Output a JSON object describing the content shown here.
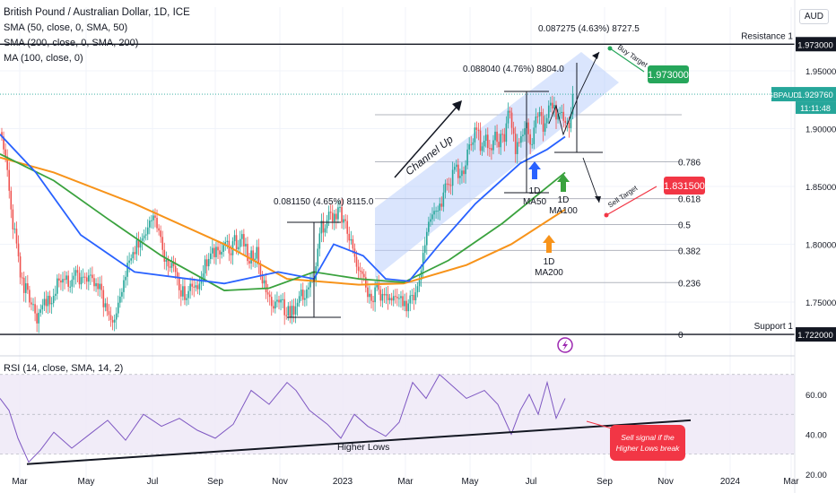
{
  "header": {
    "title": "British Pound / Australian Dollar, 1D, ICE",
    "indicators": [
      "SMA (50, close, 0, SMA, 50)",
      "SMA (200, close, 0, SMA, 200)",
      "MA (100, close, 0)"
    ],
    "currency": "AUD"
  },
  "colors": {
    "up": "#26a69a",
    "down": "#ef5350",
    "sma50": "#2962ff",
    "sma200": "#f7931a",
    "ma100": "#3aa23e",
    "channel": "#bbd0fb",
    "rsi": "#7e57c2",
    "rsiBand": "#ede7f6",
    "buy": "#26a65b",
    "sell": "#f23645",
    "price": "#26a69a"
  },
  "chart_data": {
    "type": "candlestick",
    "x_ticks": [
      "Mar",
      "May",
      "Jul",
      "Sep",
      "Nov",
      "2023",
      "Mar",
      "May",
      "Jul",
      "Sep",
      "Nov",
      "2024",
      "Mar"
    ],
    "y_ticks": [
      1.75,
      1.8,
      1.85,
      1.9,
      1.95
    ],
    "y_tick_labels": [
      "1.750000",
      "1.800000",
      "1.850000",
      "1.900000",
      "1.950000"
    ],
    "ylim": [
      1.705,
      2.005
    ],
    "price": {
      "symbol": "GBPAUD",
      "value": "1.929760",
      "countdown": "11:11:48",
      "level": 1.92976
    },
    "resistance": {
      "label": "Resistance 1",
      "value": "1.973000",
      "level": 1.973
    },
    "support": {
      "label": "Support 1",
      "value": "1.722000",
      "level": 1.722
    },
    "buy_target": {
      "label": "Buy Target",
      "value": "1.973000"
    },
    "sell_target": {
      "label": "Sell Target",
      "value": "1.831500"
    },
    "fib_levels": [
      {
        "label": "0",
        "level": 1.722
      },
      {
        "label": "0.236",
        "level": 1.7668
      },
      {
        "label": "0.382",
        "level": 1.7946
      },
      {
        "label": "0.5",
        "level": 1.817
      },
      {
        "label": "0.618",
        "level": 1.8394
      },
      {
        "label": "0.786",
        "level": 1.8713
      },
      {
        "label": "",
        "level": 1.912
      }
    ],
    "measurements": [
      {
        "label": "0.081150 (4.65%) 8115.0"
      },
      {
        "label": "0.088040 (4.76%) 8804.0"
      },
      {
        "label": "0.087275 (4.63%) 8727.5"
      }
    ],
    "annotations": {
      "channel": "Channel Up",
      "ma50": [
        "1D",
        "MA50"
      ],
      "ma100": [
        "1D",
        "MA100"
      ],
      "ma200": [
        "1D",
        "MA200"
      ],
      "higher_lows": "Higher Lows",
      "sell_signal": [
        "Sell signal if the",
        "Higher Lows break"
      ]
    },
    "rsi": {
      "label": "RSI (14, close, SMA, 14, 2)",
      "y_ticks": [
        20,
        40,
        60
      ],
      "y_tick_labels": [
        "20.00",
        "40.00",
        "60.00"
      ],
      "band": [
        30,
        70
      ],
      "ylim": [
        15,
        78
      ]
    },
    "candles_close": [
      1.893,
      1.882,
      1.8759,
      1.8642,
      1.8462,
      1.8301,
      1.8128,
      1.8134,
      1.8006,
      1.7895,
      1.7713,
      1.771,
      1.7578,
      1.7662,
      1.7605,
      1.7496,
      1.7479,
      1.7482,
      1.7402,
      1.7315,
      1.7407,
      1.7436,
      1.7473,
      1.7527,
      1.7465,
      1.7554,
      1.7481,
      1.7491,
      1.7554,
      1.7571,
      1.7704,
      1.7686,
      1.7669,
      1.7699,
      1.7692,
      1.7729,
      1.7632,
      1.7633,
      1.7693,
      1.7727,
      1.7777,
      1.7753,
      1.7653,
      1.7715,
      1.7719,
      1.7713,
      1.7676,
      1.773,
      1.7736,
      1.7707,
      1.7637,
      1.7662,
      1.7612,
      1.7658,
      1.7604,
      1.7455,
      1.7489,
      1.7421,
      1.7388,
      1.7344,
      1.7323,
      1.7348,
      1.7402,
      1.7494,
      1.7547,
      1.7586,
      1.7689,
      1.7718,
      1.7839,
      1.7859,
      1.7878,
      1.7932,
      1.7914,
      1.8037,
      1.7971,
      1.8029,
      1.8051,
      1.8075,
      1.8086,
      1.8145,
      1.8204,
      1.8207,
      1.8248,
      1.8229,
      1.8138,
      1.8118,
      1.8063,
      1.7951,
      1.7849,
      1.7866,
      1.7808,
      1.7796,
      1.7839,
      1.781,
      1.7759,
      1.771,
      1.7602,
      1.7548,
      1.7637,
      1.7517,
      1.7534,
      1.7595,
      1.7658,
      1.7633,
      1.7626,
      1.7645,
      1.7611,
      1.7659,
      1.7706,
      1.7747,
      1.7869,
      1.7809,
      1.7872,
      1.792,
      1.7968,
      1.7888,
      1.7977,
      1.7947,
      1.7911,
      1.7934,
      1.7994,
      1.8019,
      1.8029,
      1.7921,
      1.7905,
      1.8026,
      1.8079,
      1.7956,
      1.7975,
      1.8045,
      1.8088,
      1.7981,
      1.8003,
      1.7855,
      1.7833,
      1.7946,
      1.7862,
      1.7875,
      1.7976,
      1.7825,
      1.7726,
      1.7661,
      1.7688,
      1.7584,
      1.7565,
      1.7545,
      1.7465,
      1.7444,
      1.7504,
      1.7519,
      1.7496,
      1.7521,
      1.7524,
      1.7386,
      1.7382,
      1.7465,
      1.7368,
      1.7467,
      1.7392,
      1.7462,
      1.7493,
      1.7551,
      1.7607,
      1.7519,
      1.7533,
      1.7609,
      1.7627,
      1.7697,
      1.7704,
      1.7686,
      1.7809,
      1.7961,
      1.8093,
      1.8203,
      1.8101,
      1.8138,
      1.8209,
      1.8281,
      1.8271,
      1.8196,
      1.8263,
      1.8216,
      1.8319,
      1.8322,
      1.8186,
      1.8216,
      1.8201,
      1.809,
      1.8032,
      1.8043,
      1.7962,
      1.7891,
      1.7805,
      1.7771,
      1.7766,
      1.7743,
      1.7714,
      1.7626,
      1.7544,
      1.7571,
      1.751,
      1.7499,
      1.7627,
      1.7662,
      1.7606,
      1.7512,
      1.757,
      1.7558,
      1.7568,
      1.7516,
      1.7535,
      1.7513,
      1.7552,
      1.7545,
      1.7532,
      1.7534,
      1.7551,
      1.7464,
      1.751,
      1.7421,
      1.7488,
      1.7557,
      1.7561,
      1.7515,
      1.7584,
      1.7637,
      1.7691,
      1.7773,
      1.7925,
      1.7992,
      1.8106,
      1.8194,
      1.8216,
      1.8257,
      1.8288,
      1.8289,
      1.829,
      1.8351,
      1.8324,
      1.8447,
      1.8525,
      1.8523,
      1.8511,
      1.8506,
      1.8643,
      1.8669,
      1.8688,
      1.8572,
      1.8591,
      1.8637,
      1.8607,
      1.8682,
      1.8819,
      1.8863,
      1.8859,
      1.8881,
      1.9009,
      1.8989,
      1.8983,
      1.8807,
      1.8846,
      1.8895,
      1.8947,
      1.8832,
      1.8831,
      1.8813,
      1.8899,
      1.8973,
      1.8886,
      1.8839,
      1.8954,
      1.8952,
      1.8886,
      1.9045,
      1.9154,
      1.9138,
      1.9006,
      1.8955,
      1.8779,
      1.8883,
      1.8878,
      1.8934,
      1.8946,
      1.9003,
      1.9053,
      1.8951,
      1.8862,
      1.8865,
      1.9008,
      1.9105,
      1.9104,
      1.9143,
      1.911,
      1.8973,
      1.9046,
      1.9091,
      1.92,
      1.9223,
      1.9174,
      1.9205,
      1.9079,
      1.9126,
      1.9135,
      1.9144,
      1.9067,
      1.905,
      1.905,
      1.9004,
      1.9124,
      1.9298
    ],
    "sma50_series": [
      [
        0,
        1.895
      ],
      [
        40,
        1.862
      ],
      [
        90,
        1.808
      ],
      [
        150,
        1.776
      ],
      [
        250,
        1.766
      ],
      [
        310,
        1.776
      ],
      [
        350,
        1.77
      ],
      [
        372,
        1.8
      ],
      [
        405,
        1.79
      ],
      [
        430,
        1.77
      ],
      [
        456,
        1.768
      ],
      [
        490,
        1.8
      ],
      [
        530,
        1.835
      ],
      [
        580,
        1.87
      ],
      [
        610,
        1.882
      ],
      [
        630,
        1.893
      ]
    ],
    "ma100_series": [
      [
        0,
        1.878
      ],
      [
        60,
        1.855
      ],
      [
        120,
        1.822
      ],
      [
        180,
        1.79
      ],
      [
        250,
        1.76
      ],
      [
        300,
        1.762
      ],
      [
        350,
        1.776
      ],
      [
        400,
        1.77
      ],
      [
        450,
        1.767
      ],
      [
        500,
        1.786
      ],
      [
        560,
        1.818
      ],
      [
        630,
        1.862
      ]
    ],
    "sma200_series": [
      [
        0,
        1.875
      ],
      [
        60,
        1.862
      ],
      [
        150,
        1.835
      ],
      [
        250,
        1.8
      ],
      [
        320,
        1.77
      ],
      [
        400,
        1.765
      ],
      [
        450,
        1.766
      ],
      [
        520,
        1.782
      ],
      [
        570,
        1.8
      ],
      [
        630,
        1.83
      ]
    ],
    "rsi_series": [
      [
        0,
        58
      ],
      [
        10,
        52
      ],
      [
        20,
        38
      ],
      [
        32,
        26
      ],
      [
        45,
        32
      ],
      [
        60,
        41
      ],
      [
        80,
        33
      ],
      [
        100,
        40
      ],
      [
        120,
        47
      ],
      [
        140,
        37
      ],
      [
        160,
        50
      ],
      [
        180,
        44
      ],
      [
        200,
        48
      ],
      [
        220,
        42
      ],
      [
        240,
        38
      ],
      [
        260,
        45
      ],
      [
        280,
        62
      ],
      [
        300,
        55
      ],
      [
        320,
        66
      ],
      [
        330,
        62
      ],
      [
        345,
        52
      ],
      [
        365,
        45
      ],
      [
        380,
        38
      ],
      [
        395,
        50
      ],
      [
        410,
        44
      ],
      [
        430,
        39
      ],
      [
        445,
        46
      ],
      [
        460,
        66
      ],
      [
        475,
        58
      ],
      [
        490,
        70
      ],
      [
        505,
        64
      ],
      [
        520,
        58
      ],
      [
        540,
        62
      ],
      [
        555,
        55
      ],
      [
        570,
        40
      ],
      [
        580,
        52
      ],
      [
        590,
        60
      ],
      [
        600,
        50
      ],
      [
        610,
        66
      ],
      [
        620,
        48
      ],
      [
        630,
        58
      ]
    ],
    "higher_lows_line": [
      [
        30,
        25
      ],
      [
        770,
        47
      ]
    ]
  }
}
